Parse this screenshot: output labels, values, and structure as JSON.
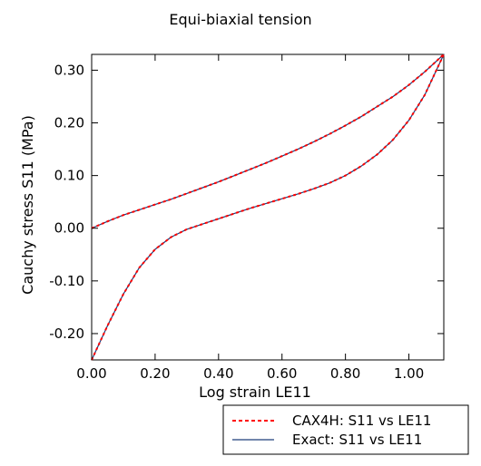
{
  "chart_data": {
    "type": "line",
    "title": "Equi-biaxial tension",
    "xlabel": "Log strain LE11",
    "ylabel": "Cauchy stress S11 (MPa)",
    "xlim": [
      0.0,
      1.11
    ],
    "ylim": [
      -0.25,
      0.33
    ],
    "xticks": [
      {
        "value": 0.0,
        "label": "0.00"
      },
      {
        "value": 0.2,
        "label": "0.20"
      },
      {
        "value": 0.4,
        "label": "0.40"
      },
      {
        "value": 0.6,
        "label": "0.60"
      },
      {
        "value": 0.8,
        "label": "0.80"
      },
      {
        "value": 1.0,
        "label": "1.00"
      }
    ],
    "yticks": [
      {
        "value": -0.2,
        "label": "-0.20"
      },
      {
        "value": -0.1,
        "label": "-0.10"
      },
      {
        "value": 0.0,
        "label": "0.00"
      },
      {
        "value": 0.1,
        "label": "0.10"
      },
      {
        "value": 0.2,
        "label": "0.20"
      },
      {
        "value": 0.3,
        "label": "0.30"
      }
    ],
    "grid": false,
    "legend_position": "bottom-right, below plot",
    "series": [
      {
        "name": "CAX4H: S11 vs LE11",
        "color": "#ff0000",
        "style": "dotted",
        "branches": [
          {
            "x": [
              0.0,
              0.05,
              0.1,
              0.15,
              0.2,
              0.25,
              0.3,
              0.35,
              0.4,
              0.45,
              0.5,
              0.55,
              0.6,
              0.65,
              0.7,
              0.75,
              0.8,
              0.85,
              0.9,
              0.95,
              1.0,
              1.05,
              1.11
            ],
            "y": [
              0.0,
              0.013,
              0.025,
              0.035,
              0.045,
              0.055,
              0.066,
              0.077,
              0.088,
              0.1,
              0.112,
              0.124,
              0.137,
              0.15,
              0.164,
              0.179,
              0.195,
              0.212,
              0.231,
              0.25,
              0.272,
              0.297,
              0.33
            ]
          },
          {
            "x": [
              0.0,
              0.05,
              0.1,
              0.15,
              0.2,
              0.25,
              0.3,
              0.35,
              0.4,
              0.45,
              0.5,
              0.55,
              0.6,
              0.65,
              0.7,
              0.75,
              0.8,
              0.85,
              0.9,
              0.95,
              1.0,
              1.05,
              1.11
            ],
            "y": [
              -0.25,
              -0.185,
              -0.125,
              -0.075,
              -0.04,
              -0.017,
              -0.002,
              0.008,
              0.018,
              0.028,
              0.038,
              0.047,
              0.056,
              0.065,
              0.075,
              0.086,
              0.1,
              0.118,
              0.14,
              0.168,
              0.205,
              0.253,
              0.33
            ]
          }
        ]
      },
      {
        "name": "Exact: S11 vs LE11",
        "color": "#1f3f7a",
        "style": "solid",
        "branches": [
          {
            "x": [
              0.0,
              0.05,
              0.1,
              0.15,
              0.2,
              0.25,
              0.3,
              0.35,
              0.4,
              0.45,
              0.5,
              0.55,
              0.6,
              0.65,
              0.7,
              0.75,
              0.8,
              0.85,
              0.9,
              0.95,
              1.0,
              1.05,
              1.11
            ],
            "y": [
              0.0,
              0.013,
              0.025,
              0.035,
              0.045,
              0.055,
              0.066,
              0.077,
              0.088,
              0.1,
              0.112,
              0.124,
              0.137,
              0.15,
              0.164,
              0.179,
              0.195,
              0.212,
              0.231,
              0.25,
              0.272,
              0.297,
              0.33
            ]
          },
          {
            "x": [
              0.0,
              0.05,
              0.1,
              0.15,
              0.2,
              0.25,
              0.3,
              0.35,
              0.4,
              0.45,
              0.5,
              0.55,
              0.6,
              0.65,
              0.7,
              0.75,
              0.8,
              0.85,
              0.9,
              0.95,
              1.0,
              1.05,
              1.11
            ],
            "y": [
              -0.25,
              -0.185,
              -0.125,
              -0.075,
              -0.04,
              -0.017,
              -0.002,
              0.008,
              0.018,
              0.028,
              0.038,
              0.047,
              0.056,
              0.065,
              0.075,
              0.086,
              0.1,
              0.118,
              0.14,
              0.168,
              0.205,
              0.253,
              0.33
            ]
          }
        ]
      }
    ]
  }
}
